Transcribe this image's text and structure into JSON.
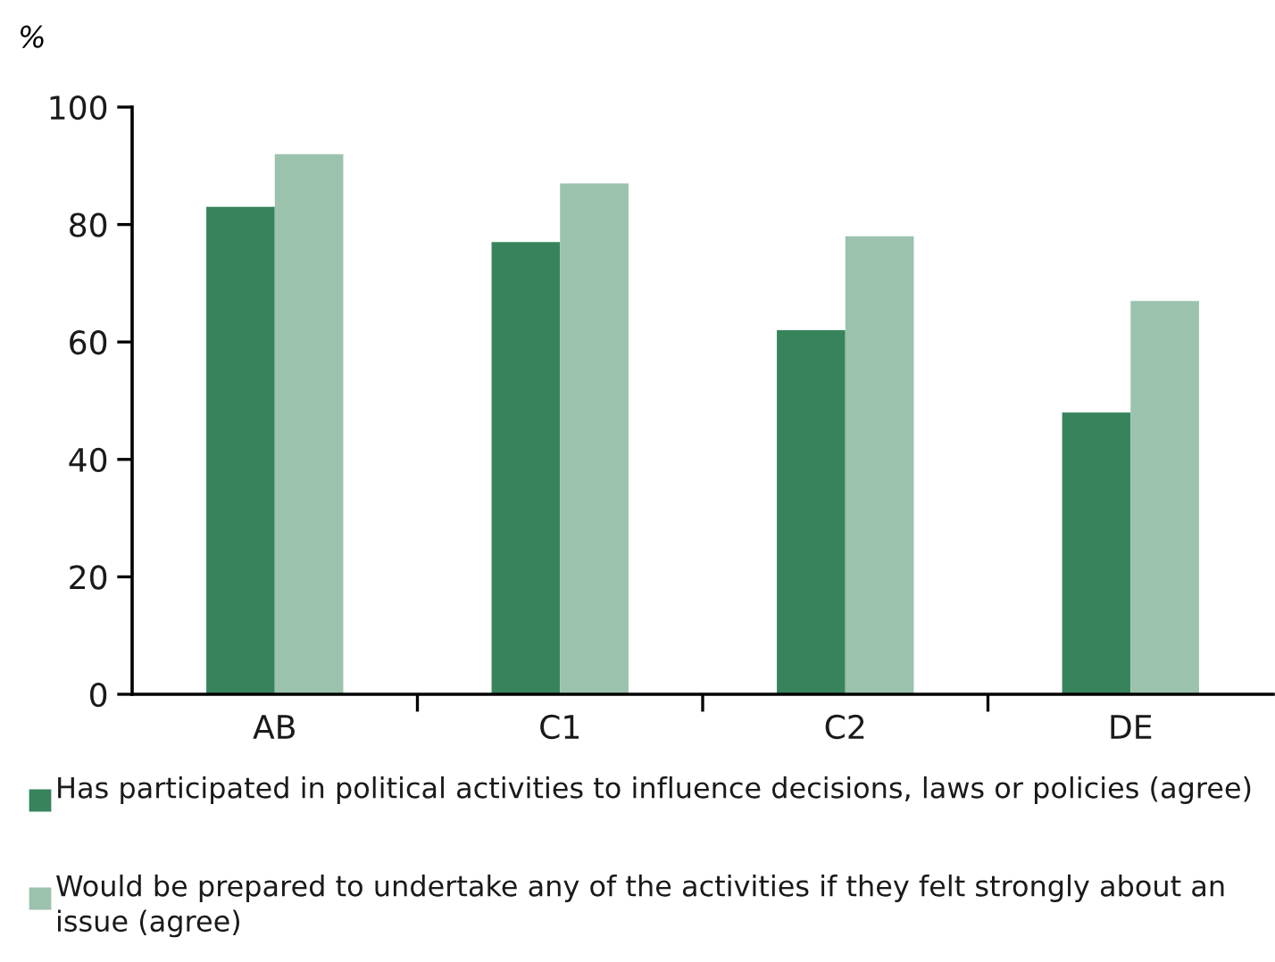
{
  "chart_data": {
    "type": "bar",
    "ylabel": "%",
    "categories": [
      "AB",
      "C1",
      "C2",
      "DE"
    ],
    "series": [
      {
        "name": "Has participated in political activities to influence decisions, laws or policies (agree)",
        "color": "#37845c",
        "values": [
          83,
          77,
          62,
          48
        ]
      },
      {
        "name": "Would be prepared to undertake any of the activities if they felt strongly about an issue (agree)",
        "color": "#9bc2ad",
        "values": [
          92,
          87,
          78,
          67
        ]
      }
    ],
    "ylim": [
      0,
      100
    ],
    "yticks": [
      0,
      20,
      40,
      60,
      80,
      100
    ],
    "grid": false,
    "legend": "bottom"
  }
}
